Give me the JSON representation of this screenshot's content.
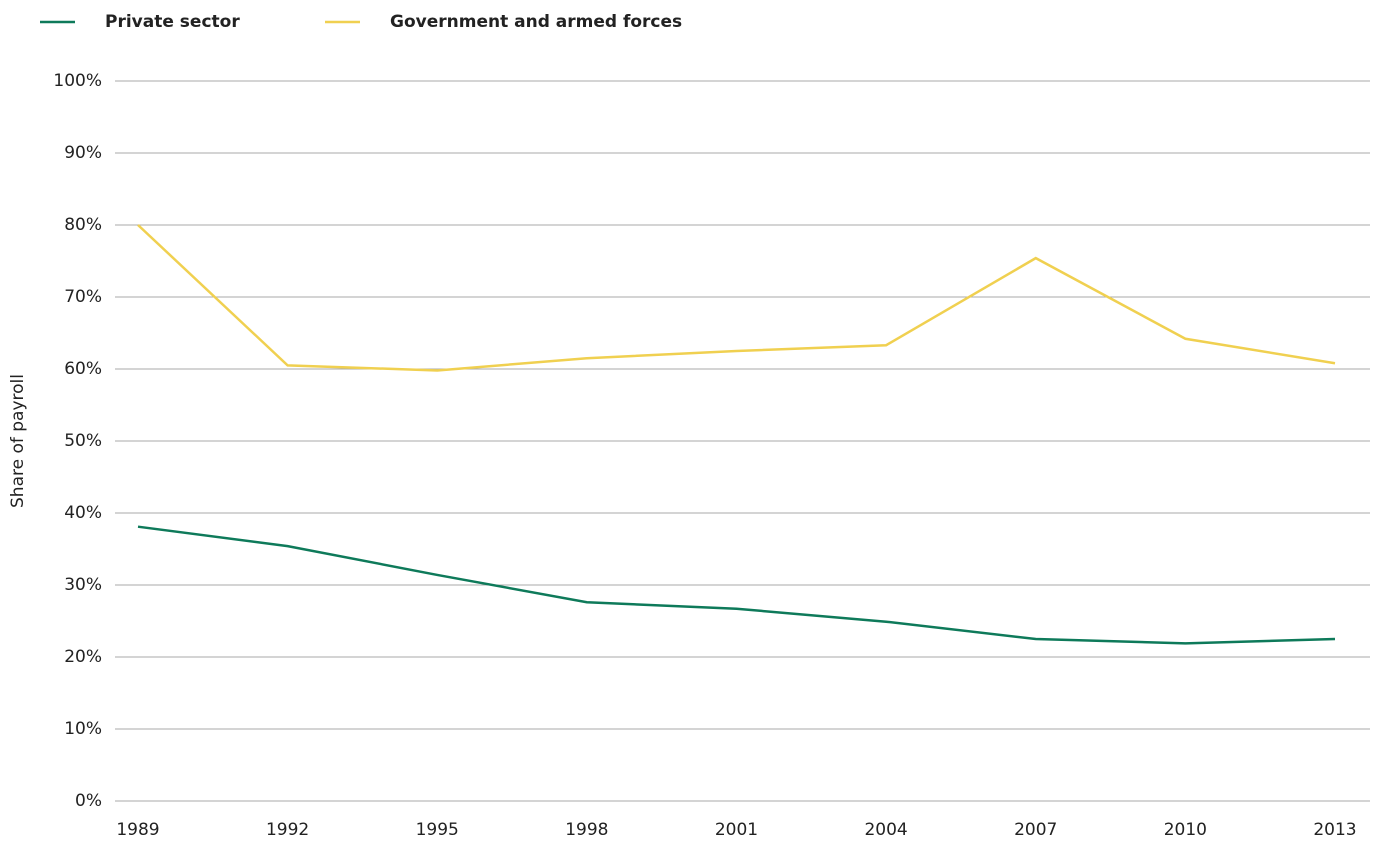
{
  "chart_data": {
    "type": "line",
    "y_label": "Share of payroll",
    "x": [
      1989,
      1992,
      1995,
      1998,
      2001,
      2004,
      2007,
      2010,
      2013
    ],
    "xlim": [
      1989,
      2013
    ],
    "xticks": [
      1989,
      1992,
      1995,
      1998,
      2001,
      2004,
      2007,
      2010,
      2013
    ],
    "ylim": [
      0,
      100
    ],
    "yticks": [
      {
        "value": 0,
        "label": "0%"
      },
      {
        "value": 10,
        "label": "10%"
      },
      {
        "value": 20,
        "label": "20%"
      },
      {
        "value": 30,
        "label": "30%"
      },
      {
        "value": 40,
        "label": "40%"
      },
      {
        "value": 50,
        "label": "50%"
      },
      {
        "value": 60,
        "label": "60%"
      },
      {
        "value": 70,
        "label": "70%"
      },
      {
        "value": 80,
        "label": "80%"
      },
      {
        "value": 90,
        "label": "90%"
      },
      {
        "value": 100,
        "label": "100%"
      }
    ],
    "grid": true,
    "legend": "top-left",
    "series": [
      {
        "name": "Private sector",
        "color": "#0e7a5a",
        "values": [
          38.1,
          35.4,
          31.4,
          27.6,
          26.7,
          24.9,
          22.5,
          21.9,
          22.5
        ]
      },
      {
        "name": "Government and armed forces",
        "color": "#f0d050",
        "values": [
          80,
          60.5,
          59.8,
          61.5,
          62.5,
          63.3,
          75.4,
          64.2,
          60.8
        ]
      }
    ]
  }
}
